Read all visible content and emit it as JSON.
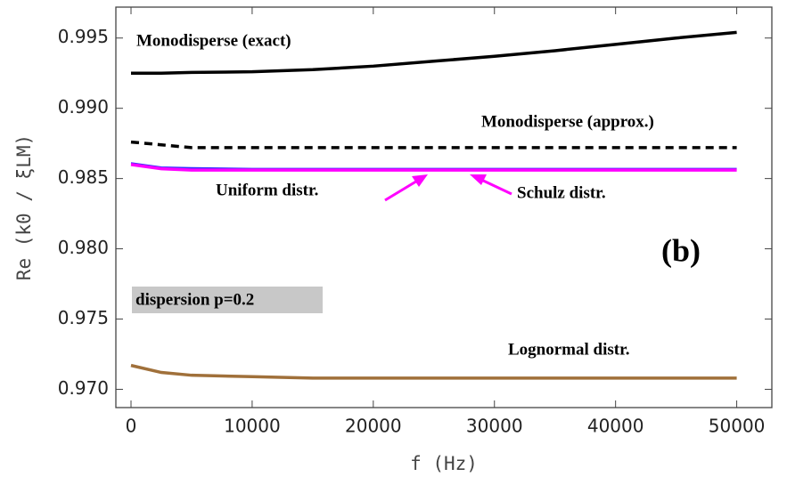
{
  "chart_data": {
    "type": "line",
    "xlabel": "f (Hz)",
    "ylabel": "Re (k0 / ξLM)",
    "annotations": [
      "(b)",
      "dispersion p=0.2"
    ],
    "x": [
      0,
      2500,
      5000,
      10000,
      15000,
      20000,
      25000,
      30000,
      35000,
      40000,
      45000,
      50000
    ],
    "series": [
      {
        "name": "Monodisperse (exact)",
        "color": "#000000",
        "dash": false,
        "values": [
          0.9925,
          0.9925,
          0.99255,
          0.9926,
          0.99275,
          0.993,
          0.99335,
          0.9937,
          0.9941,
          0.99455,
          0.995,
          0.9954
        ]
      },
      {
        "name": "Monodisperse (approx.)",
        "color": "#000000",
        "dash": true,
        "values": [
          0.9876,
          0.9874,
          0.9872,
          0.9872,
          0.9872,
          0.9872,
          0.9872,
          0.9872,
          0.9872,
          0.9872,
          0.9872,
          0.9872
        ]
      },
      {
        "name": "Uniform distr.",
        "color": "#3030ff",
        "dash": false,
        "values": [
          0.9861,
          0.9858,
          0.98575,
          0.9857,
          0.9857,
          0.9857,
          0.9857,
          0.9857,
          0.9857,
          0.9857,
          0.9857,
          0.9857
        ]
      },
      {
        "name": "Schulz distr.",
        "color": "#ff00ff",
        "dash": false,
        "values": [
          0.986,
          0.9857,
          0.9856,
          0.9856,
          0.9856,
          0.9856,
          0.9856,
          0.9856,
          0.9856,
          0.9856,
          0.9856,
          0.9856
        ]
      },
      {
        "name": "Lognormal distr.",
        "color": "#a0703a",
        "dash": false,
        "values": [
          0.9717,
          0.9712,
          0.971,
          0.9709,
          0.9708,
          0.9708,
          0.9708,
          0.9708,
          0.9708,
          0.9708,
          0.9708,
          0.9708
        ]
      }
    ],
    "xlim": [
      -1250,
      52900
    ],
    "ylim": [
      0.9687,
      0.9972
    ],
    "xticks": [
      0,
      10000,
      20000,
      30000,
      40000,
      50000
    ],
    "yticks": [
      {
        "value": 0.97,
        "label": "0.970"
      },
      0.975,
      {
        "value": 0.98,
        "label": "0.980"
      },
      0.985,
      {
        "value": 0.99,
        "label": "0.990"
      },
      0.995
    ],
    "grid": false
  }
}
